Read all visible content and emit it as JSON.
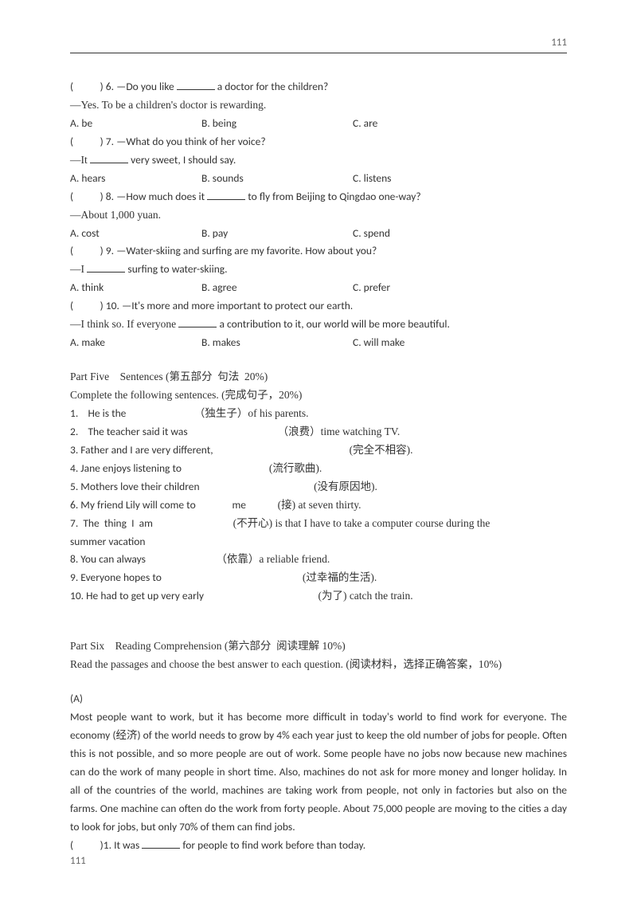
{
  "pageNumberTop": "111",
  "pageNumberBottom": "111",
  "q6": {
    "paren": "(           ) 6. ",
    "prompt_a": "—Do you like ",
    "prompt_b": " a doctor for the children?",
    "reply": "—Yes. To be a children's doctor is rewarding.",
    "a": "A. be",
    "b": "B. being",
    "c": "C. are"
  },
  "q7": {
    "paren": "(           ) 7. ",
    "prompt": "—What do you think of her voice?",
    "reply_a": "—It ",
    "reply_b": " very sweet, I should say.",
    "a": "A. hears",
    "b": "B. sounds",
    "c": "C. listens"
  },
  "q8": {
    "paren": "(           ) 8. ",
    "prompt_a": "—How much does it ",
    "prompt_b": " to fly from Beijing to Qingdao one-way?",
    "reply": "—About 1,000 yuan.",
    "a": "A. cost",
    "b": "B. pay",
    "c": "C. spend"
  },
  "q9": {
    "paren": "(           ) 9. ",
    "prompt": "—Water-skiing and surfing are my favorite. How about you?",
    "reply_a": "—I ",
    "reply_b": " surfing to water-skiing.",
    "a": "A. think",
    "b": "B. agree",
    "c": "C. prefer"
  },
  "q10": {
    "paren": "(           ) 10. ",
    "prompt": "—It's more and more important to protect our earth.",
    "reply_a": "—I think so. If everyone ",
    "reply_b": " a contribution to it, our world will be more beautiful.",
    "a": "A. make",
    "b": "B. makes",
    "c": "C. will make"
  },
  "part5": {
    "title": "Part Five    Sentences (第五部分  句法  20%)",
    "sub": "Complete the following sentences. (完成句子，20%)",
    "s1a": "1.    He is the                            ",
    "s1b": "（独生子）of his parents.",
    "s2a": "2.    The teacher said it was                                     ",
    "s2b": "（浪费）time watching TV.",
    "s3a": "3. Father and I are very different,                                                        ",
    "s3b": "(完全不相容).",
    "s4a": "4. Jane enjoys listening to                                    ",
    "s4b": "(流行歌曲).",
    "s5a": "5. Mothers love their children                                               ",
    "s5b": "(没有原因地).",
    "s6a": "6. My friend Lily will come to               me             ",
    "s6b": "(接) at seven thirty.",
    "s7a": "7.  The  thing  I  am                                 ",
    "s7b": "(不开心)  is  that  I  have  to  take  a  computer  course  during  the",
    "s7c": "summer vacation",
    "s8a": "8. You can always                             ",
    "s8b": "（依靠）a reliable friend.",
    "s9a": "9. Everyone hopes to                                                          ",
    "s9b": "(过幸福的生活).",
    "s10a": "10. He had to get up very early                                               ",
    "s10b": "(为了) catch the train."
  },
  "part6": {
    "title": "Part Six    Reading Comprehension (第六部分  阅读理解 10%)",
    "sub": "Read the passages and choose the best answer to each question. (阅读材料，选择正确答案，10%)",
    "label": "(A)",
    "passage": "Most  people  want  to  work,  but  it  has  become  more  difficult  in  today's  world  to  find  work  for everyone.  The  economy  (经济)  of  the  world  needs  to  grow  by  4%  each  year  just  to  keep  the  old number of jobs for people. Often this is not possible, and so more people are out of work. Some people have no jobs now because new machines can do the work of many people in short time. Also, machines do not ask for more money and longer holiday. In all of the countries of the world, machines are taking work from people, not only in factories but also on the farms. One machine can often do the work from forty people. About 75,000 people are moving to the cities a day to look for jobs, but only 70% of them can find jobs.",
    "q1_paren": "(           )1. ",
    "q1a": "It was ",
    "q1b": " for people to find work before than today."
  }
}
